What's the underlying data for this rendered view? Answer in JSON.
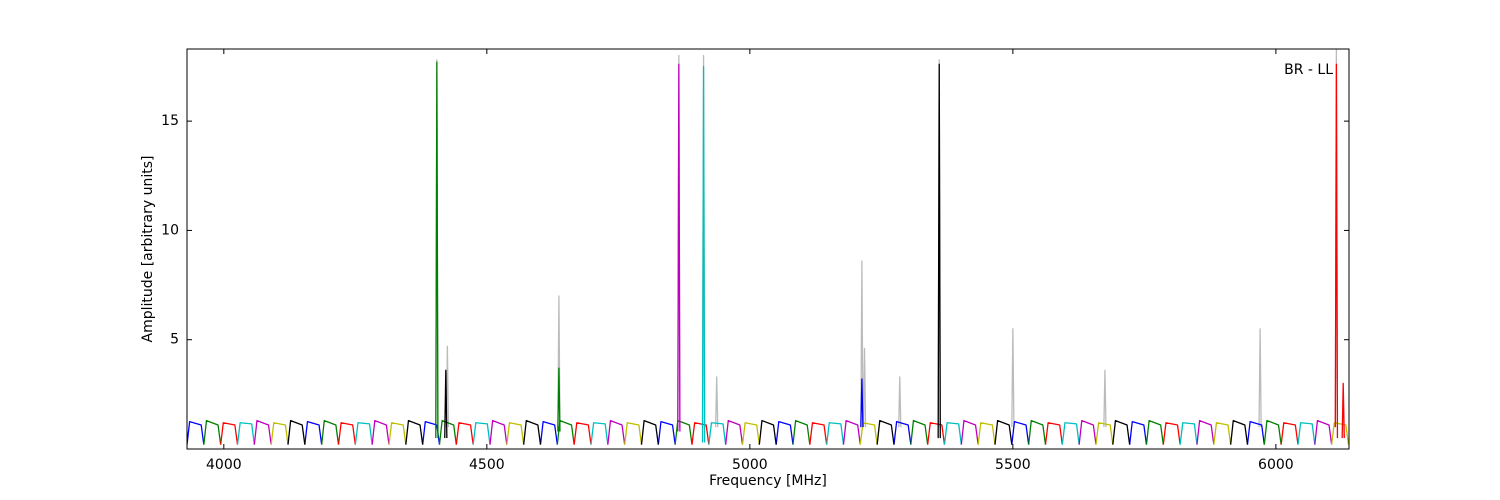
{
  "chart_data": {
    "type": "line",
    "xlabel": "Frequency [MHz]",
    "ylabel": "Amplitude [arbitrary units]",
    "annotation": "BR - LL",
    "xlim": [
      3930,
      6139
    ],
    "ylim": [
      0,
      18.3
    ],
    "xticks": [
      4000,
      4500,
      5000,
      5500,
      6000
    ],
    "yticks": [
      5,
      10,
      15
    ],
    "series": [
      {
        "color": "#bbbbbb",
        "x": [
          4403,
          4405,
          4407,
          null,
          4423,
          4425,
          4427,
          null,
          4635,
          4637,
          4639,
          null,
          4863,
          4865,
          4867,
          null,
          4910,
          4912,
          4914,
          null,
          4935,
          4937,
          4939,
          null,
          5211,
          5213,
          5215,
          null,
          5216,
          5218,
          5220,
          null,
          5283,
          5285,
          5287,
          null,
          5358,
          5360,
          5362,
          null,
          5498,
          5500,
          5502,
          null,
          5673,
          5675,
          5677,
          null,
          5968,
          5970,
          5972,
          null,
          6113,
          6115,
          6117
        ],
        "values": [
          1,
          17.8,
          1,
          null,
          1,
          4.7,
          1,
          null,
          1,
          7,
          1,
          null,
          1,
          18,
          1,
          null,
          1,
          18,
          1,
          null,
          1,
          3.3,
          1,
          null,
          1,
          8.6,
          1,
          null,
          1,
          4.6,
          1,
          null,
          1,
          3.3,
          1,
          null,
          1,
          17.8,
          1,
          null,
          1,
          5.5,
          1,
          null,
          1,
          3.6,
          1,
          null,
          1,
          5.5,
          1,
          null,
          1,
          18.3,
          1
        ]
      },
      {
        "color": "#0000ff",
        "x": [
          3930,
          3935,
          3957,
          3962,
          null,
          4154,
          4159,
          4181,
          4186,
          null,
          4378,
          4383,
          4405,
          4410,
          null,
          4602,
          4607,
          4629,
          4634,
          null,
          4826,
          4831,
          4853,
          4858,
          null,
          5050,
          5055,
          5077,
          5082,
          null,
          5274,
          5279,
          5301,
          5306,
          null,
          5498,
          5503,
          5525,
          5530,
          null,
          5722,
          5727,
          5749,
          5754,
          null,
          5946,
          5951,
          5973,
          5978
        ],
        "values": [
          0.2,
          1.25,
          1.1,
          0.2,
          null,
          0.2,
          1.25,
          1.1,
          0.2,
          null,
          0.2,
          1.25,
          1.1,
          0.2,
          null,
          0.2,
          1.25,
          1.1,
          0.2,
          null,
          0.2,
          1.25,
          1.1,
          0.2,
          null,
          0.2,
          1.25,
          1.1,
          0.2,
          null,
          0.2,
          1.25,
          1.1,
          0.2,
          null,
          0.2,
          1.25,
          1.1,
          0.2,
          null,
          0.2,
          1.25,
          1.1,
          0.2,
          null,
          0.2,
          1.25,
          1.1,
          0.2
        ]
      },
      {
        "color": "#008000",
        "x": [
          3962,
          3967,
          3989,
          3994,
          null,
          4186,
          4191,
          4213,
          4218,
          null,
          4410,
          4415,
          4437,
          4442,
          null,
          4634,
          4639,
          4661,
          4666,
          null,
          4858,
          4863,
          4885,
          4890,
          null,
          5082,
          5087,
          5109,
          5114,
          null,
          5306,
          5311,
          5333,
          5338,
          null,
          5530,
          5535,
          5557,
          5562,
          null,
          5754,
          5759,
          5781,
          5786,
          null,
          5978,
          5983,
          6005,
          6010
        ],
        "values": [
          0.2,
          1.3,
          1.1,
          0.2,
          null,
          0.2,
          1.3,
          1.1,
          0.2,
          null,
          0.2,
          1.3,
          1.1,
          0.2,
          null,
          0.2,
          1.3,
          1.1,
          0.2,
          null,
          0.2,
          1.3,
          1.1,
          0.2,
          null,
          0.2,
          1.3,
          1.1,
          0.2,
          null,
          0.2,
          1.3,
          1.1,
          0.2,
          null,
          0.2,
          1.3,
          1.1,
          0.2,
          null,
          0.2,
          1.3,
          1.1,
          0.2,
          null,
          0.2,
          1.3,
          1.1,
          0.2
        ]
      },
      {
        "color": "#ff0000",
        "x": [
          3994,
          3999,
          4021,
          4026,
          null,
          4218,
          4223,
          4245,
          4250,
          null,
          4442,
          4447,
          4469,
          4474,
          null,
          4666,
          4671,
          4693,
          4698,
          null,
          4890,
          4895,
          4917,
          4922,
          null,
          5114,
          5119,
          5141,
          5146,
          null,
          5338,
          5343,
          5365,
          5370,
          null,
          5562,
          5567,
          5589,
          5594,
          null,
          5786,
          5791,
          5813,
          5818,
          null,
          6010,
          6015,
          6037,
          6042
        ],
        "values": [
          0.2,
          1.2,
          1.1,
          0.2,
          null,
          0.2,
          1.2,
          1.1,
          0.2,
          null,
          0.2,
          1.2,
          1.1,
          0.2,
          null,
          0.2,
          1.2,
          1.1,
          0.2,
          null,
          0.2,
          1.2,
          1.1,
          0.2,
          null,
          0.2,
          1.2,
          1.1,
          0.2,
          null,
          0.2,
          1.2,
          1.1,
          0.2,
          null,
          0.2,
          1.2,
          1.1,
          0.2,
          null,
          0.2,
          1.2,
          1.1,
          0.2,
          null,
          0.2,
          1.2,
          1.1,
          0.2
        ]
      },
      {
        "color": "#00bfbf",
        "x": [
          4026,
          4031,
          4053,
          4058,
          null,
          4250,
          4255,
          4277,
          4282,
          null,
          4474,
          4479,
          4501,
          4506,
          null,
          4698,
          4703,
          4725,
          4730,
          null,
          4922,
          4927,
          4949,
          4954,
          null,
          5146,
          5151,
          5173,
          5178,
          null,
          5370,
          5375,
          5397,
          5402,
          null,
          5594,
          5599,
          5621,
          5626,
          null,
          5818,
          5823,
          5845,
          5850,
          null,
          6042,
          6047,
          6069,
          6074
        ],
        "values": [
          0.2,
          1.2,
          1.15,
          0.2,
          null,
          0.2,
          1.2,
          1.15,
          0.2,
          null,
          0.2,
          1.2,
          1.15,
          0.2,
          null,
          0.2,
          1.2,
          1.15,
          0.2,
          null,
          0.2,
          1.2,
          1.15,
          0.2,
          null,
          0.2,
          1.2,
          1.15,
          0.2,
          null,
          0.2,
          1.2,
          1.15,
          0.2,
          null,
          0.2,
          1.2,
          1.15,
          0.2,
          null,
          0.2,
          1.2,
          1.15,
          0.2,
          null,
          0.2,
          1.2,
          1.15,
          0.2
        ]
      },
      {
        "color": "#bf00bf",
        "x": [
          4058,
          4063,
          4085,
          4090,
          null,
          4282,
          4287,
          4309,
          4314,
          null,
          4506,
          4511,
          4533,
          4538,
          null,
          4730,
          4735,
          4757,
          4762,
          null,
          4954,
          4959,
          4981,
          4986,
          null,
          5178,
          5183,
          5205,
          5210,
          null,
          5402,
          5407,
          5429,
          5434,
          null,
          5626,
          5631,
          5653,
          5658,
          null,
          5850,
          5855,
          5877,
          5882,
          null,
          6074,
          6079,
          6101,
          6106
        ],
        "values": [
          0.2,
          1.3,
          1.1,
          0.2,
          null,
          0.2,
          1.3,
          1.1,
          0.2,
          null,
          0.2,
          1.3,
          1.1,
          0.2,
          null,
          0.2,
          1.3,
          1.1,
          0.2,
          null,
          0.2,
          1.3,
          1.1,
          0.2,
          null,
          0.2,
          1.3,
          1.1,
          0.2,
          null,
          0.2,
          1.3,
          1.1,
          0.2,
          null,
          0.2,
          1.3,
          1.1,
          0.2,
          null,
          0.2,
          1.3,
          1.1,
          0.2,
          null,
          0.2,
          1.3,
          1.1,
          0.2
        ]
      },
      {
        "color": "#bfbf00",
        "x": [
          4090,
          4095,
          4117,
          4122,
          null,
          4314,
          4319,
          4341,
          4346,
          null,
          4538,
          4543,
          4565,
          4570,
          null,
          4762,
          4767,
          4789,
          4794,
          null,
          4986,
          4991,
          5013,
          5018,
          null,
          5210,
          5215,
          5237,
          5242,
          null,
          5434,
          5439,
          5461,
          5466,
          null,
          5658,
          5663,
          5685,
          5690,
          null,
          5882,
          5887,
          5909,
          5914,
          null,
          6106,
          6111,
          6133,
          6138
        ],
        "values": [
          0.2,
          1.2,
          1.1,
          0.2,
          null,
          0.2,
          1.2,
          1.1,
          0.2,
          null,
          0.2,
          1.2,
          1.1,
          0.2,
          null,
          0.2,
          1.2,
          1.1,
          0.2,
          null,
          0.2,
          1.2,
          1.1,
          0.2,
          null,
          0.2,
          1.2,
          1.1,
          0.2,
          null,
          0.2,
          1.2,
          1.1,
          0.2,
          null,
          0.2,
          1.2,
          1.1,
          0.2,
          null,
          0.2,
          1.2,
          1.1,
          0.2,
          null,
          0.2,
          1.2,
          1.1,
          0.2
        ]
      },
      {
        "color": "#000000",
        "x": [
          4122,
          4127,
          4149,
          4154,
          null,
          4346,
          4351,
          4373,
          4378,
          null,
          4570,
          4575,
          4597,
          4602,
          null,
          4794,
          4799,
          4821,
          4826,
          null,
          5018,
          5023,
          5045,
          5050,
          null,
          5242,
          5247,
          5269,
          5274,
          null,
          5466,
          5471,
          5493,
          5498,
          null,
          5690,
          5695,
          5717,
          5722,
          null,
          5914,
          5919,
          5941,
          5946
        ],
        "values": [
          0.2,
          1.3,
          1.1,
          0.2,
          null,
          0.2,
          1.3,
          1.1,
          0.2,
          null,
          0.2,
          1.3,
          1.1,
          0.2,
          null,
          0.2,
          1.3,
          1.1,
          0.2,
          null,
          0.2,
          1.3,
          1.1,
          0.2,
          null,
          0.2,
          1.3,
          1.1,
          0.2,
          null,
          0.2,
          1.3,
          1.1,
          0.2,
          null,
          0.2,
          1.3,
          1.1,
          0.2,
          null,
          0.2,
          1.3,
          1.1,
          0.2
        ]
      },
      {
        "color": "#008000",
        "x": [
          4403,
          4405,
          4407,
          null,
          4635,
          4637,
          4639
        ],
        "values": [
          0.5,
          17.7,
          0.5,
          null,
          0.8,
          3.7,
          0.8
        ]
      },
      {
        "color": "#000000",
        "x": [
          4420,
          4422,
          4424,
          null,
          5358,
          5360,
          5362
        ],
        "values": [
          0.5,
          3.6,
          0.5,
          null,
          0.5,
          17.6,
          0.5
        ]
      },
      {
        "color": "#bf00bf",
        "x": [
          4863,
          4865,
          4867
        ],
        "values": [
          0.8,
          17.6,
          0.8
        ]
      },
      {
        "color": "#00bfbf",
        "x": [
          4910,
          4912,
          4914
        ],
        "values": [
          0.3,
          17.5,
          0.3
        ]
      },
      {
        "color": "#ff0000",
        "x": [
          6113,
          6115,
          6117,
          null,
          6126,
          6128,
          6130
        ],
        "values": [
          1,
          17.6,
          0.5,
          null,
          0.5,
          3,
          0.5
        ]
      },
      {
        "color": "#0000ff",
        "x": [
          5211,
          5213,
          5215
        ],
        "values": [
          1,
          3.2,
          1
        ]
      }
    ]
  }
}
